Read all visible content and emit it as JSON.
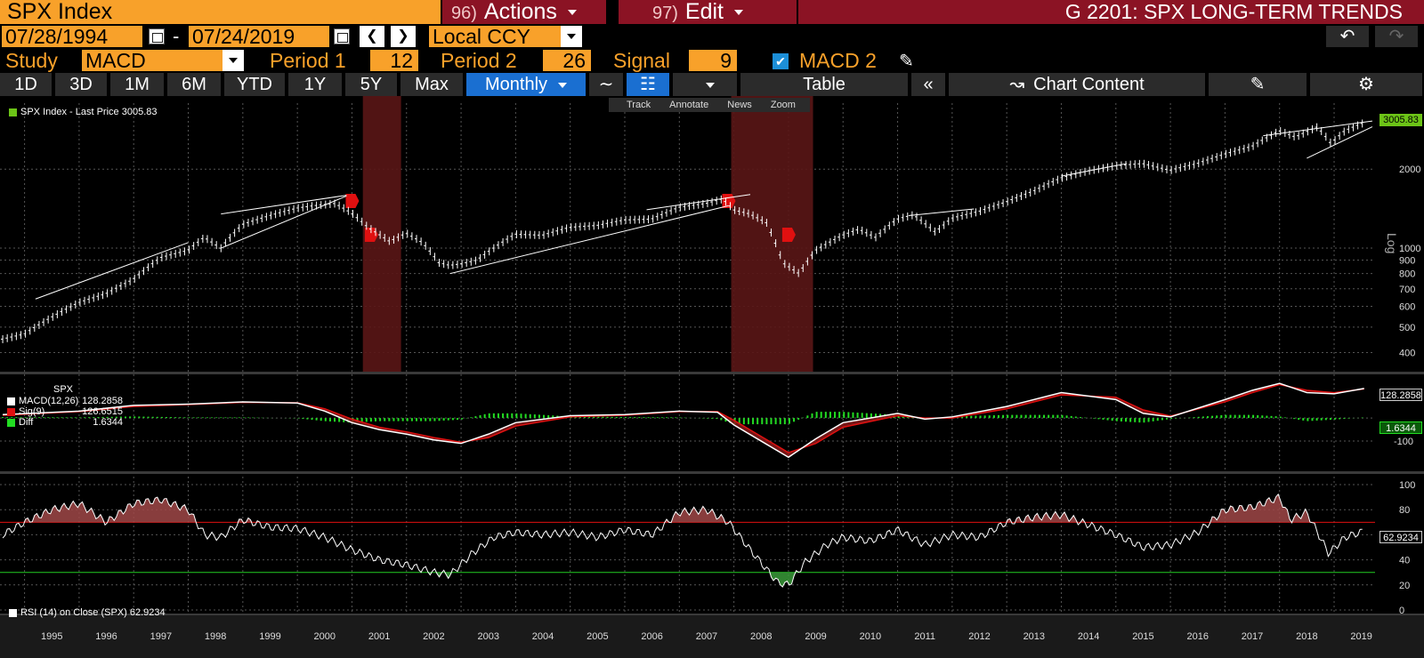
{
  "header": {
    "ticker": "SPX Index",
    "actions_num": "96)",
    "actions_label": "Actions",
    "edit_num": "97)",
    "edit_label": "Edit",
    "title": "G 2201: SPX LONG-TERM TRENDS"
  },
  "dates": {
    "start": "07/28/1994",
    "separator": "-",
    "end": "07/24/2019",
    "currency": "Local CCY"
  },
  "study": {
    "label": "Study",
    "value": "MACD",
    "period1_label": "Period 1",
    "period1": "12",
    "period2_label": "Period 2",
    "period2": "26",
    "signal_label": "Signal",
    "signal": "9",
    "macd2_label": "MACD 2",
    "macd2_checked": true
  },
  "toolbar": {
    "ranges": [
      "1D",
      "3D",
      "1M",
      "6M",
      "YTD",
      "1Y",
      "5Y",
      "Max"
    ],
    "frequency": "Monthly",
    "table_label": "Table",
    "chart_content_label": "Chart Content",
    "mini_tools": [
      "Track",
      "Annotate",
      "News",
      "Zoom"
    ]
  },
  "colors": {
    "orange": "#f8a12a",
    "red_menu": "#8b1324",
    "selected_blue": "#1a6fd1",
    "recession": "#5a1616",
    "last_price_box": "#6cc417"
  },
  "chart_data": [
    {
      "type": "bar",
      "title": "",
      "legend": "SPX Index - Last Price 3005.83",
      "last_value_label": "3005.83",
      "scale": "log",
      "y_ticks": [
        400,
        500,
        600,
        700,
        800,
        900,
        1000,
        2000
      ],
      "y_axis_label": "Log",
      "x_tick_labels": [
        "1995",
        "1996",
        "1997",
        "1998",
        "1999",
        "2000",
        "2001",
        "2002",
        "2003",
        "2004",
        "2005",
        "2006",
        "2007",
        "2008",
        "2009",
        "2010",
        "2011",
        "2012",
        "2013",
        "2014",
        "2015",
        "2016",
        "2017",
        "2018",
        "2019"
      ],
      "recession_bands": [
        [
          2001.2,
          2001.9
        ],
        [
          2007.95,
          2009.45
        ]
      ],
      "event_markers": [
        2001.0,
        2001.35,
        2007.9,
        2009.0
      ],
      "series": [
        {
          "x": [
            1994.6,
            1995.0,
            1995.5,
            1996.0,
            1996.5,
            1997.0,
            1997.5,
            1998.0,
            1998.3,
            1998.6,
            1999.0,
            1999.5,
            2000.0,
            2000.3,
            2000.7,
            2001.0,
            2001.3,
            2001.7,
            2002.0,
            2002.3,
            2002.6,
            2002.8,
            2003.0,
            2003.3,
            2003.6,
            2004.0,
            2004.5,
            2005.0,
            2005.5,
            2006.0,
            2006.5,
            2007.0,
            2007.5,
            2007.8,
            2008.0,
            2008.3,
            2008.6,
            2008.9,
            2009.2,
            2009.5,
            2010.0,
            2010.3,
            2010.6,
            2011.0,
            2011.3,
            2011.7,
            2012.0,
            2012.5,
            2013.0,
            2013.5,
            2014.0,
            2014.5,
            2015.0,
            2015.5,
            2016.0,
            2016.5,
            2017.0,
            2017.5,
            2018.0,
            2018.3,
            2018.7,
            2018.95,
            2019.2,
            2019.55
          ],
          "values": [
            450,
            470,
            545,
            620,
            670,
            760,
            920,
            980,
            1100,
            1000,
            1230,
            1330,
            1420,
            1450,
            1480,
            1360,
            1200,
            1060,
            1140,
            1050,
            880,
            860,
            870,
            900,
            1000,
            1130,
            1120,
            1200,
            1220,
            1280,
            1290,
            1430,
            1480,
            1540,
            1400,
            1350,
            1250,
            880,
            800,
            980,
            1120,
            1180,
            1100,
            1290,
            1340,
            1150,
            1300,
            1380,
            1500,
            1650,
            1850,
            1970,
            2060,
            2100,
            1980,
            2100,
            2280,
            2440,
            2800,
            2650,
            2900,
            2500,
            2800,
            3005
          ]
        }
      ]
    },
    {
      "type": "line",
      "title": "SPX",
      "legend_entries": [
        {
          "name": "MACD(12,26)",
          "value": "128.2858",
          "color": "#ffffff"
        },
        {
          "name": "Sig(9)",
          "value": "126.6515",
          "color": "#e01010"
        },
        {
          "name": "Diff",
          "value": "1.6344",
          "color": "#22dd22"
        }
      ],
      "last_value_labels": [
        "128.2858",
        "1.6344"
      ],
      "y_ticks": [
        -100
      ],
      "series": [
        {
          "name": "MACD(12,26)",
          "x": [
            1994.6,
            1996,
            1997,
            1998,
            1999,
            2000,
            2000.5,
            2001,
            2001.5,
            2002,
            2002.5,
            2003,
            2003.5,
            2004,
            2005,
            2006,
            2007,
            2007.7,
            2008,
            2008.5,
            2009,
            2009.5,
            2010,
            2011,
            2011.5,
            2012,
            2013,
            2014,
            2015,
            2015.5,
            2016,
            2017,
            2017.5,
            2018,
            2018.5,
            2019,
            2019.55
          ],
          "values": [
            15,
            30,
            55,
            60,
            70,
            65,
            30,
            -20,
            -50,
            -70,
            -95,
            -110,
            -70,
            -20,
            10,
            15,
            30,
            25,
            -30,
            -100,
            -170,
            -90,
            -20,
            20,
            -5,
            5,
            50,
            110,
            80,
            20,
            5,
            80,
            120,
            150,
            110,
            105,
            128
          ]
        },
        {
          "name": "Sig(9)",
          "x": [
            1994.6,
            1996,
            1997,
            1998,
            1999,
            2000,
            2000.5,
            2001,
            2001.5,
            2002,
            2002.5,
            2003,
            2003.5,
            2004,
            2005,
            2006,
            2007,
            2007.7,
            2008,
            2008.5,
            2009,
            2009.5,
            2010,
            2011,
            2011.5,
            2012,
            2013,
            2014,
            2015,
            2015.5,
            2016,
            2017,
            2017.5,
            2018,
            2018.5,
            2019,
            2019.55
          ],
          "values": [
            12,
            28,
            50,
            58,
            68,
            66,
            40,
            -5,
            -40,
            -60,
            -85,
            -105,
            -85,
            -35,
            5,
            12,
            28,
            28,
            -10,
            -80,
            -150,
            -110,
            -40,
            10,
            0,
            0,
            40,
            100,
            90,
            35,
            8,
            70,
            110,
            145,
            120,
            110,
            126
          ]
        }
      ]
    },
    {
      "type": "line",
      "title": "",
      "legend": "RSI (14) on Close (SPX) 62.9234",
      "last_value_label": "62.9234",
      "y_ticks": [
        0,
        20,
        40,
        60,
        80,
        100
      ],
      "overbought": 70,
      "oversold": 30,
      "series": [
        {
          "name": "RSI (14)",
          "x": [
            1994.6,
            1995.0,
            1995.5,
            1996.0,
            1996.5,
            1997.0,
            1997.5,
            1998.0,
            1998.3,
            1998.6,
            1999.0,
            1999.5,
            2000.0,
            2000.5,
            2001.0,
            2001.5,
            2002.0,
            2002.5,
            2002.8,
            2003.2,
            2003.6,
            2004.0,
            2004.5,
            2005.0,
            2005.5,
            2006.0,
            2006.5,
            2007.0,
            2007.5,
            2007.9,
            2008.3,
            2008.8,
            2009.0,
            2009.3,
            2009.7,
            2010.0,
            2010.5,
            2011.0,
            2011.5,
            2012.0,
            2012.5,
            2013.0,
            2013.5,
            2014.0,
            2014.5,
            2015.0,
            2015.5,
            2016.0,
            2016.5,
            2017.0,
            2017.5,
            2018.0,
            2018.2,
            2018.5,
            2018.9,
            2019.2,
            2019.55
          ],
          "values": [
            60,
            70,
            80,
            85,
            70,
            85,
            88,
            80,
            60,
            58,
            72,
            66,
            65,
            58,
            48,
            40,
            36,
            30,
            28,
            45,
            58,
            62,
            60,
            62,
            58,
            64,
            60,
            78,
            80,
            70,
            48,
            22,
            20,
            38,
            52,
            58,
            55,
            64,
            52,
            60,
            58,
            70,
            74,
            76,
            68,
            60,
            50,
            52,
            62,
            80,
            82,
            90,
            72,
            78,
            45,
            58,
            63
          ]
        }
      ]
    }
  ]
}
